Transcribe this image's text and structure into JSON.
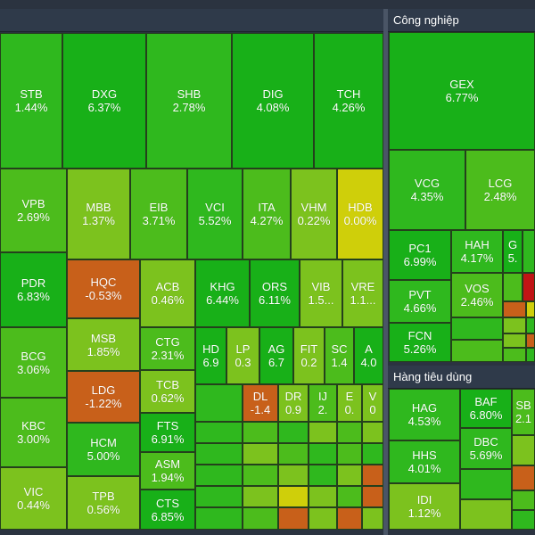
{
  "colors": {
    "strong_green": "#18b018",
    "green": "#2fb81e",
    "mid_green": "#4cbc1c",
    "light_green": "#7cc21e",
    "unchanged_yellow": "#cfcf0a",
    "decline_orange": "#c8601a",
    "decline_red": "#c01515",
    "background": "#2b3340"
  },
  "sectors": {
    "industrial": {
      "title": "Công nghiệp"
    },
    "consumer": {
      "title": "Hàng tiêu dùng"
    }
  },
  "tiles": {
    "stb": {
      "ticker": "STB",
      "change": "1.44%"
    },
    "dxg": {
      "ticker": "DXG",
      "change": "6.37%"
    },
    "shb": {
      "ticker": "SHB",
      "change": "2.78%"
    },
    "dig": {
      "ticker": "DIG",
      "change": "4.08%"
    },
    "tch": {
      "ticker": "TCH",
      "change": "4.26%"
    },
    "vpb": {
      "ticker": "VPB",
      "change": "2.69%"
    },
    "mbb": {
      "ticker": "MBB",
      "change": "1.37%"
    },
    "eib": {
      "ticker": "EIB",
      "change": "3.71%"
    },
    "vci": {
      "ticker": "VCI",
      "change": "5.52%"
    },
    "ita": {
      "ticker": "ITA",
      "change": "4.27%"
    },
    "vhm": {
      "ticker": "VHM",
      "change": "0.22%"
    },
    "hdb": {
      "ticker": "HDB",
      "change": "0.00%"
    },
    "pdr": {
      "ticker": "PDR",
      "change": "6.83%"
    },
    "hqc": {
      "ticker": "HQC",
      "change": "-0.53%"
    },
    "acb": {
      "ticker": "ACB",
      "change": "0.46%"
    },
    "khg": {
      "ticker": "KHG",
      "change": "6.44%"
    },
    "ors": {
      "ticker": "ORS",
      "change": "6.11%"
    },
    "vib": {
      "ticker": "VIB",
      "change": "1.5..."
    },
    "vre": {
      "ticker": "VRE",
      "change": "1.1..."
    },
    "msb": {
      "ticker": "MSB",
      "change": "1.85%"
    },
    "ctg": {
      "ticker": "CTG",
      "change": "2.31%"
    },
    "hd": {
      "ticker": "HD",
      "change": "6.9"
    },
    "lp": {
      "ticker": "LP",
      "change": "0.3"
    },
    "ag": {
      "ticker": "AG",
      "change": "6.7"
    },
    "fit": {
      "ticker": "FIT",
      "change": "0.2"
    },
    "sc": {
      "ticker": "SC",
      "change": "1.4"
    },
    "a": {
      "ticker": "A",
      "change": "4.0"
    },
    "bcg": {
      "ticker": "BCG",
      "change": "3.06%"
    },
    "ldg": {
      "ticker": "LDG",
      "change": "-1.22%"
    },
    "tcb": {
      "ticker": "TCB",
      "change": "0.62%"
    },
    "dl": {
      "ticker": "DL",
      "change": "-1.4"
    },
    "dr": {
      "ticker": "DR",
      "change": "0.9"
    },
    "ij": {
      "ticker": "IJ",
      "change": "2."
    },
    "e": {
      "ticker": "E",
      "change": "0."
    },
    "v": {
      "ticker": "V",
      "change": "0"
    },
    "kbc": {
      "ticker": "KBC",
      "change": "3.00%"
    },
    "hcm": {
      "ticker": "HCM",
      "change": "5.00%"
    },
    "fts": {
      "ticker": "FTS",
      "change": "6.91%"
    },
    "asm": {
      "ticker": "ASM",
      "change": "1.94%"
    },
    "vic": {
      "ticker": "VIC",
      "change": "0.44%"
    },
    "tpb": {
      "ticker": "TPB",
      "change": "0.56%"
    },
    "cts": {
      "ticker": "CTS",
      "change": "6.85%"
    },
    "gex": {
      "ticker": "GEX",
      "change": "6.77%"
    },
    "vcg": {
      "ticker": "VCG",
      "change": "4.35%"
    },
    "lcg": {
      "ticker": "LCG",
      "change": "2.48%"
    },
    "pc1": {
      "ticker": "PC1",
      "change": "6.99%"
    },
    "hah": {
      "ticker": "HAH",
      "change": "4.17%"
    },
    "g": {
      "ticker": "G",
      "change": "5."
    },
    "pvt": {
      "ticker": "PVT",
      "change": "4.66%"
    },
    "vos": {
      "ticker": "VOS",
      "change": "2.46%"
    },
    "fcn": {
      "ticker": "FCN",
      "change": "5.26%"
    },
    "hag": {
      "ticker": "HAG",
      "change": "4.53%"
    },
    "baf": {
      "ticker": "BAF",
      "change": "6.80%"
    },
    "sb": {
      "ticker": "SB",
      "change": "2.1"
    },
    "dbc": {
      "ticker": "DBC",
      "change": "5.69%"
    },
    "hhs": {
      "ticker": "HHS",
      "change": "4.01%"
    },
    "idi": {
      "ticker": "IDI",
      "change": "1.12%"
    }
  }
}
